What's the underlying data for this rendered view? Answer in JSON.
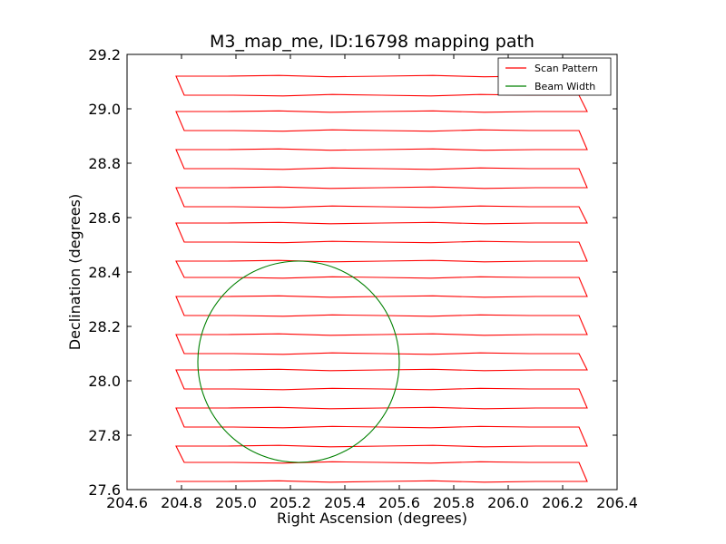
{
  "chart_data": {
    "type": "line",
    "title": "M3_map_me, ID:16798 mapping path",
    "xlabel": "Right Ascension (degrees)",
    "ylabel": "Declination (degrees)",
    "xlim": [
      204.6,
      206.4
    ],
    "ylim": [
      27.6,
      29.2
    ],
    "xticks": [
      "204.6",
      "204.8",
      "205.0",
      "205.2",
      "205.4",
      "205.6",
      "205.8",
      "206.0",
      "206.2",
      "206.4"
    ],
    "yticks": [
      "27.6",
      "27.8",
      "28.0",
      "28.2",
      "28.4",
      "28.6",
      "28.8",
      "29.0",
      "29.2"
    ],
    "grid": false,
    "legend": {
      "position": "top-right",
      "entries": [
        "Scan Pattern",
        "Beam Width"
      ]
    },
    "series": [
      {
        "name": "Scan Pattern",
        "color": "#ff0000",
        "turn_x_left": [
          204.78,
          204.81
        ],
        "turn_x_right": [
          206.26,
          206.29
        ],
        "row_dec": [
          27.63,
          27.7,
          27.76,
          27.83,
          27.9,
          27.97,
          28.04,
          28.1,
          28.17,
          28.24,
          28.31,
          28.38,
          28.44,
          28.51,
          28.58,
          28.64,
          28.71,
          28.78,
          28.85,
          28.92,
          28.99,
          29.05,
          29.12
        ]
      },
      {
        "name": "Beam Width",
        "color": "#008000",
        "shape": "circle",
        "center": [
          205.23,
          28.07
        ],
        "radius_dec": 0.37
      }
    ]
  }
}
